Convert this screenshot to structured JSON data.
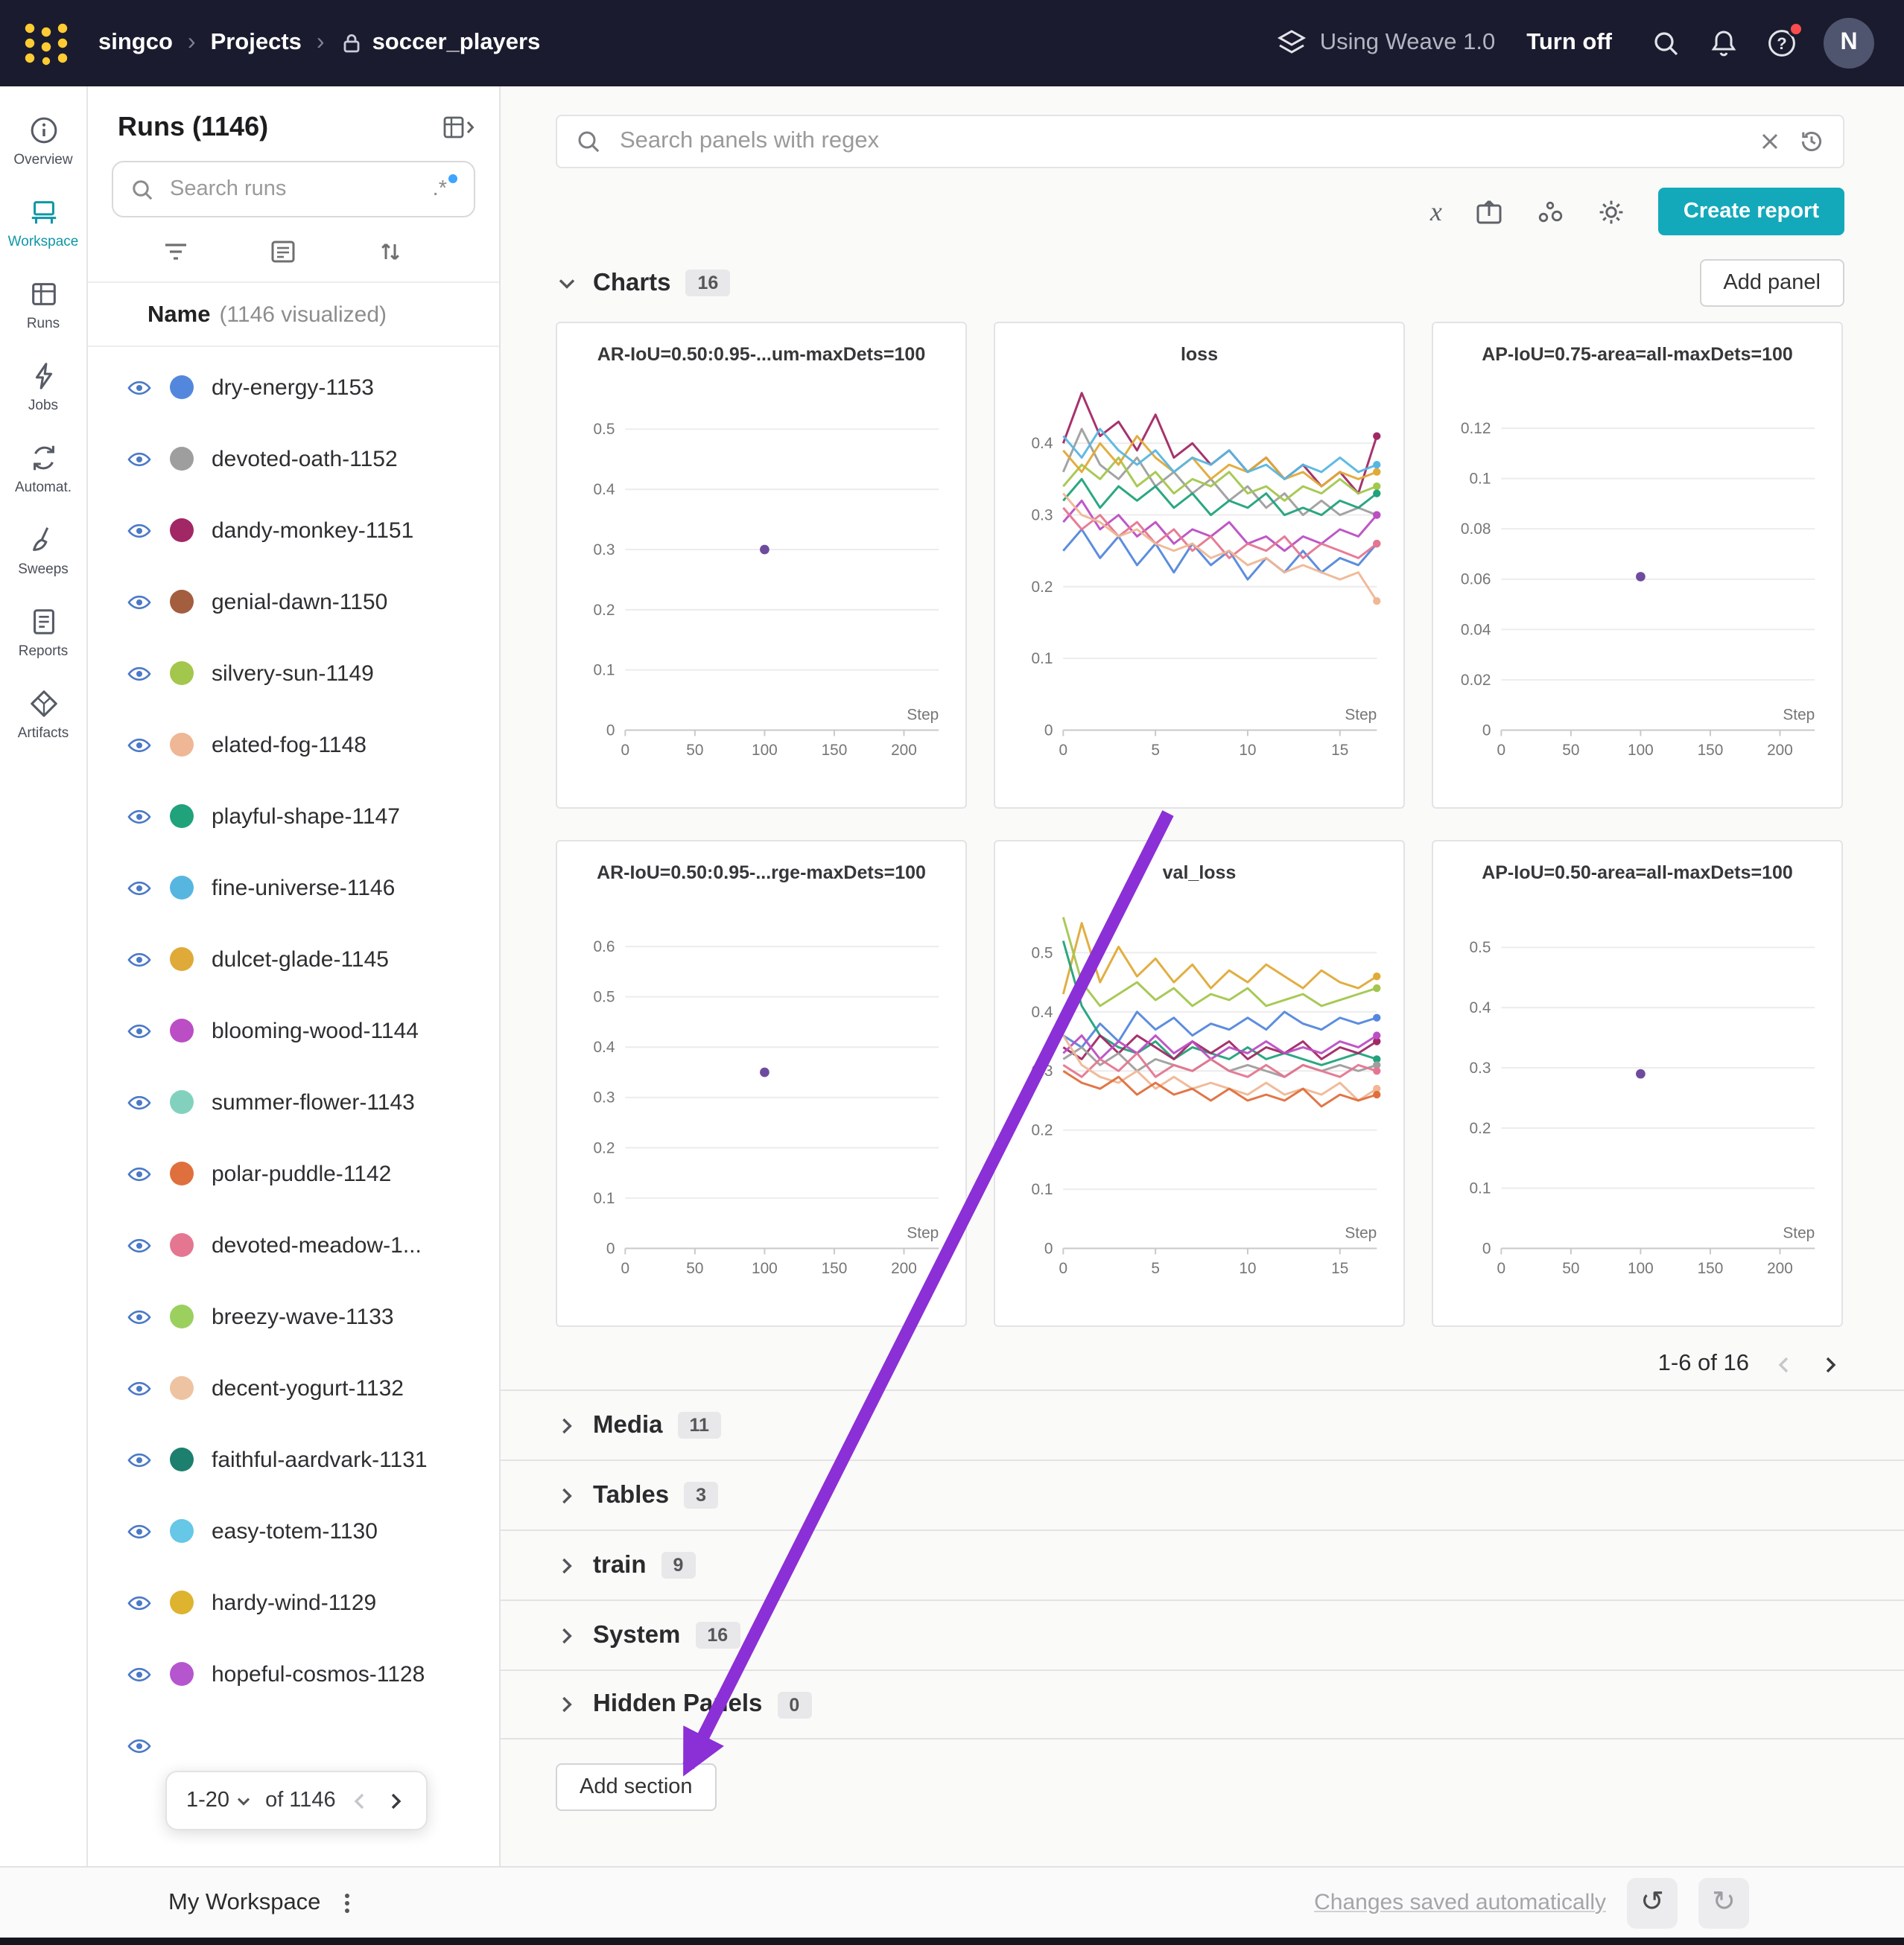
{
  "navbar": {
    "org": "singco",
    "separator": "›",
    "section": "Projects",
    "project": "soccer_players",
    "weave_label": "Using Weave 1.0",
    "turn_off_label": "Turn off",
    "avatar_initial": "N"
  },
  "rail": {
    "items": [
      {
        "label": "Overview"
      },
      {
        "label": "Workspace"
      },
      {
        "label": "Runs"
      },
      {
        "label": "Jobs"
      },
      {
        "label": "Automat."
      },
      {
        "label": "Sweeps"
      },
      {
        "label": "Reports"
      },
      {
        "label": "Artifacts"
      }
    ]
  },
  "runs_panel": {
    "title": "Runs (1146)",
    "search_placeholder": "Search runs",
    "regex_toggle": ".*",
    "name_header": "Name",
    "name_sub": "(1146 visualized)",
    "runs": [
      {
        "name": "dry-energy-1153",
        "color": "#5387dd"
      },
      {
        "name": "devoted-oath-1152",
        "color": "#9e9e9e"
      },
      {
        "name": "dandy-monkey-1151",
        "color": "#a12864"
      },
      {
        "name": "genial-dawn-1150",
        "color": "#a35d3f"
      },
      {
        "name": "silvery-sun-1149",
        "color": "#a3c64d"
      },
      {
        "name": "elated-fog-1148",
        "color": "#efb795"
      },
      {
        "name": "playful-shape-1147",
        "color": "#20a27a"
      },
      {
        "name": "fine-universe-1146",
        "color": "#57b6e0"
      },
      {
        "name": "dulcet-glade-1145",
        "color": "#dfaa37"
      },
      {
        "name": "blooming-wood-1144",
        "color": "#bb4ec4"
      },
      {
        "name": "summer-flower-1143",
        "color": "#82d1bf"
      },
      {
        "name": "polar-puddle-1142",
        "color": "#df6f3d"
      },
      {
        "name": "devoted-meadow-1...",
        "color": "#e57691"
      },
      {
        "name": "breezy-wave-1133",
        "color": "#9bd05f"
      },
      {
        "name": "decent-yogurt-1132",
        "color": "#eec3a2"
      },
      {
        "name": "faithful-aardvark-1131",
        "color": "#1d7f6d"
      },
      {
        "name": "easy-totem-1130",
        "color": "#66c7e6"
      },
      {
        "name": "hardy-wind-1129",
        "color": "#ddb32f"
      },
      {
        "name": "hopeful-cosmos-1128",
        "color": "#b556cf"
      }
    ],
    "partial_row": true,
    "pagination": {
      "range": "1-20",
      "of_label": "of 1146"
    }
  },
  "main": {
    "search_placeholder": "Search panels with regex",
    "create_report_label": "Create report",
    "charts_header": {
      "label": "Charts",
      "count": "16"
    },
    "add_panel_label": "Add panel",
    "grid_pagination": "1-6 of 16",
    "sections": [
      {
        "label": "Media",
        "count": "11"
      },
      {
        "label": "Tables",
        "count": "3"
      },
      {
        "label": "train",
        "count": "9"
      },
      {
        "label": "System",
        "count": "16"
      },
      {
        "label": "Hidden Panels",
        "count": "0"
      }
    ],
    "add_section_label": "Add section"
  },
  "footer": {
    "workspace_label": "My Workspace",
    "autosave_label": "Changes saved automatically"
  },
  "annotation": {
    "arrow_color": "#8b2fd6"
  },
  "chart_data": [
    {
      "type": "scatter",
      "title": "AR-IoU=0.50:0.95-...um-maxDets=100",
      "xlabel": "Step",
      "xlim": [
        0,
        225
      ],
      "xticks": [
        0,
        50,
        100,
        150,
        200
      ],
      "ylim": [
        0,
        0.56
      ],
      "yticks": [
        0,
        0.1,
        0.2,
        0.3,
        0.4,
        0.5
      ],
      "points": [
        {
          "x": 100,
          "y": 0.3,
          "color": "#6e4b9e"
        }
      ]
    },
    {
      "type": "line",
      "title": "loss",
      "xlabel": "Step",
      "xlim": [
        0,
        17
      ],
      "xticks": [
        0,
        5,
        10,
        15
      ],
      "ylim": [
        0,
        0.47
      ],
      "yticks": [
        0,
        0.1,
        0.2,
        0.3,
        0.4
      ],
      "series": [
        {
          "name": "dandy-monkey-1151",
          "color": "#a12864",
          "values": [
            0.4,
            0.47,
            0.41,
            0.43,
            0.39,
            0.44,
            0.38,
            0.4,
            0.37,
            0.39,
            0.36,
            0.38,
            0.35,
            0.37,
            0.34,
            0.36,
            0.33,
            0.41
          ]
        },
        {
          "name": "devoted-oath-1152",
          "color": "#9e9e9e",
          "values": [
            0.36,
            0.42,
            0.37,
            0.35,
            0.38,
            0.34,
            0.36,
            0.33,
            0.35,
            0.32,
            0.34,
            0.31,
            0.33,
            0.3,
            0.32,
            0.3,
            0.31,
            0.3
          ]
        },
        {
          "name": "dry-energy-1153",
          "color": "#5387dd",
          "values": [
            0.25,
            0.28,
            0.24,
            0.27,
            0.23,
            0.26,
            0.22,
            0.26,
            0.23,
            0.25,
            0.21,
            0.24,
            0.22,
            0.25,
            0.22,
            0.24,
            0.23,
            0.26
          ]
        },
        {
          "name": "silvery-sun-1149",
          "color": "#a3c64d",
          "values": [
            0.34,
            0.37,
            0.35,
            0.38,
            0.34,
            0.36,
            0.33,
            0.35,
            0.34,
            0.36,
            0.33,
            0.34,
            0.32,
            0.34,
            0.33,
            0.35,
            0.33,
            0.34
          ]
        },
        {
          "name": "dulcet-glade-1145",
          "color": "#dfaa37",
          "values": [
            0.39,
            0.36,
            0.4,
            0.37,
            0.41,
            0.38,
            0.36,
            0.38,
            0.35,
            0.37,
            0.36,
            0.38,
            0.35,
            0.36,
            0.34,
            0.36,
            0.35,
            0.36
          ]
        },
        {
          "name": "playful-shape-1147",
          "color": "#20a27a",
          "values": [
            0.32,
            0.35,
            0.31,
            0.34,
            0.32,
            0.34,
            0.31,
            0.33,
            0.3,
            0.32,
            0.31,
            0.33,
            0.3,
            0.31,
            0.3,
            0.32,
            0.31,
            0.33
          ]
        },
        {
          "name": "fine-universe-1146",
          "color": "#57b6e0",
          "values": [
            0.41,
            0.38,
            0.42,
            0.39,
            0.37,
            0.39,
            0.36,
            0.38,
            0.37,
            0.39,
            0.36,
            0.37,
            0.35,
            0.37,
            0.36,
            0.38,
            0.36,
            0.37
          ]
        },
        {
          "name": "blooming-wood-1144",
          "color": "#bb4ec4",
          "values": [
            0.29,
            0.32,
            0.28,
            0.3,
            0.27,
            0.29,
            0.26,
            0.28,
            0.27,
            0.29,
            0.26,
            0.27,
            0.25,
            0.27,
            0.26,
            0.28,
            0.27,
            0.3
          ]
        },
        {
          "name": "devoted-meadow",
          "color": "#e57691",
          "values": [
            0.31,
            0.28,
            0.3,
            0.27,
            0.29,
            0.26,
            0.28,
            0.25,
            0.27,
            0.24,
            0.26,
            0.25,
            0.27,
            0.24,
            0.26,
            0.25,
            0.24,
            0.26
          ]
        },
        {
          "name": "elated-fog-1148",
          "color": "#efb795",
          "values": [
            0.33,
            0.3,
            0.29,
            0.27,
            0.28,
            0.26,
            0.25,
            0.26,
            0.24,
            0.25,
            0.23,
            0.24,
            0.22,
            0.23,
            0.22,
            0.21,
            0.22,
            0.18
          ]
        }
      ]
    },
    {
      "type": "scatter",
      "title": "AP-IoU=0.75-area=all-maxDets=100",
      "xlabel": "Step",
      "xlim": [
        0,
        225
      ],
      "xticks": [
        0,
        50,
        100,
        150,
        200
      ],
      "ylim": [
        0,
        0.134
      ],
      "yticks": [
        0,
        0.02,
        0.04,
        0.06,
        0.08,
        0.1,
        0.12
      ],
      "points": [
        {
          "x": 100,
          "y": 0.061,
          "color": "#6e4b9e"
        }
      ]
    },
    {
      "type": "scatter",
      "title": "AR-IoU=0.50:0.95-...rge-maxDets=100",
      "xlabel": "Step",
      "xlim": [
        0,
        225
      ],
      "xticks": [
        0,
        50,
        100,
        150,
        200
      ],
      "ylim": [
        0,
        0.67
      ],
      "yticks": [
        0,
        0.1,
        0.2,
        0.3,
        0.4,
        0.5,
        0.6
      ],
      "points": [
        {
          "x": 100,
          "y": 0.35,
          "color": "#6e4b9e"
        }
      ]
    },
    {
      "type": "line",
      "title": "val_loss",
      "xlabel": "Step",
      "xlim": [
        0,
        17
      ],
      "xticks": [
        0,
        5,
        10,
        15
      ],
      "ylim": [
        0,
        0.57
      ],
      "yticks": [
        0,
        0.1,
        0.2,
        0.3,
        0.4,
        0.5
      ],
      "series": [
        {
          "name": "dulcet-glade-1145",
          "color": "#dfaa37",
          "values": [
            0.43,
            0.55,
            0.45,
            0.51,
            0.46,
            0.49,
            0.45,
            0.48,
            0.44,
            0.47,
            0.45,
            0.48,
            0.46,
            0.44,
            0.47,
            0.45,
            0.44,
            0.46
          ]
        },
        {
          "name": "silvery-sun-1149",
          "color": "#a3c64d",
          "values": [
            0.56,
            0.45,
            0.41,
            0.43,
            0.45,
            0.42,
            0.44,
            0.41,
            0.43,
            0.42,
            0.44,
            0.41,
            0.42,
            0.43,
            0.41,
            0.42,
            0.43,
            0.44
          ]
        },
        {
          "name": "dry-energy-1153",
          "color": "#5387dd",
          "values": [
            0.36,
            0.34,
            0.38,
            0.35,
            0.4,
            0.37,
            0.39,
            0.36,
            0.38,
            0.37,
            0.39,
            0.37,
            0.4,
            0.38,
            0.37,
            0.39,
            0.38,
            0.39
          ]
        },
        {
          "name": "playful-shape-1147",
          "color": "#20a27a",
          "values": [
            0.52,
            0.41,
            0.36,
            0.34,
            0.33,
            0.35,
            0.32,
            0.34,
            0.33,
            0.32,
            0.34,
            0.32,
            0.33,
            0.32,
            0.31,
            0.32,
            0.33,
            0.32
          ]
        },
        {
          "name": "dandy-monkey-1151",
          "color": "#a12864",
          "values": [
            0.34,
            0.32,
            0.36,
            0.33,
            0.36,
            0.34,
            0.32,
            0.35,
            0.33,
            0.35,
            0.32,
            0.34,
            0.33,
            0.35,
            0.32,
            0.34,
            0.33,
            0.35
          ]
        },
        {
          "name": "blooming-wood-1144",
          "color": "#bb4ec4",
          "values": [
            0.33,
            0.36,
            0.32,
            0.35,
            0.33,
            0.36,
            0.33,
            0.35,
            0.32,
            0.34,
            0.33,
            0.35,
            0.33,
            0.34,
            0.33,
            0.35,
            0.34,
            0.36
          ]
        },
        {
          "name": "devoted-oath-1152",
          "color": "#9e9e9e",
          "values": [
            0.32,
            0.34,
            0.31,
            0.33,
            0.3,
            0.32,
            0.31,
            0.3,
            0.32,
            0.3,
            0.31,
            0.3,
            0.29,
            0.31,
            0.3,
            0.31,
            0.3,
            0.31
          ]
        },
        {
          "name": "devoted-meadow",
          "color": "#e57691",
          "values": [
            0.31,
            0.29,
            0.32,
            0.3,
            0.33,
            0.29,
            0.31,
            0.3,
            0.32,
            0.3,
            0.29,
            0.31,
            0.29,
            0.31,
            0.3,
            0.29,
            0.31,
            0.3
          ]
        },
        {
          "name": "elated-fog-1148",
          "color": "#efb795",
          "values": [
            0.36,
            0.31,
            0.29,
            0.28,
            0.3,
            0.27,
            0.29,
            0.27,
            0.28,
            0.27,
            0.26,
            0.28,
            0.26,
            0.27,
            0.26,
            0.28,
            0.25,
            0.27
          ]
        },
        {
          "name": "polar-puddle-1142",
          "color": "#df6f3d",
          "values": [
            0.3,
            0.28,
            0.27,
            0.29,
            0.26,
            0.28,
            0.26,
            0.27,
            0.25,
            0.27,
            0.25,
            0.26,
            0.25,
            0.27,
            0.24,
            0.26,
            0.25,
            0.26
          ]
        }
      ]
    },
    {
      "type": "scatter",
      "title": "AP-IoU=0.50-area=all-maxDets=100",
      "xlabel": "Step",
      "xlim": [
        0,
        225
      ],
      "xticks": [
        0,
        50,
        100,
        150,
        200
      ],
      "ylim": [
        0,
        0.56
      ],
      "yticks": [
        0,
        0.1,
        0.2,
        0.3,
        0.4,
        0.5
      ],
      "points": [
        {
          "x": 100,
          "y": 0.29,
          "color": "#6e4b9e"
        }
      ]
    }
  ]
}
